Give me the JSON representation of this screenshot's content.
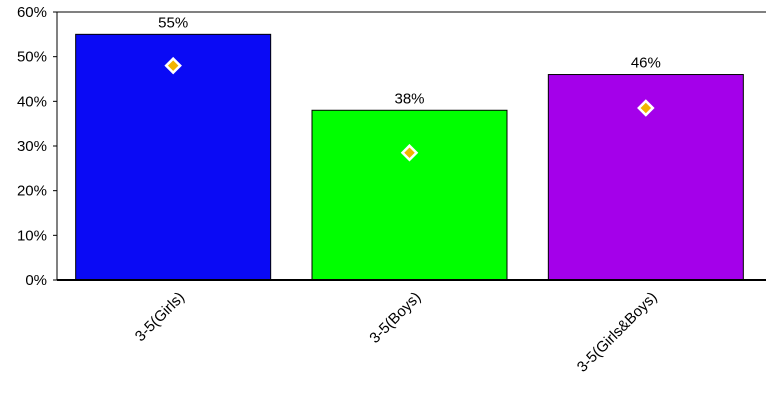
{
  "chart_data": {
    "type": "bar",
    "categories": [
      "3-5(Girls)",
      "3-5(Boys)",
      "3-5(Girls&Boys)"
    ],
    "values": [
      55,
      38,
      46
    ],
    "value_labels": [
      "55%",
      "38%",
      "46%"
    ],
    "markers": [
      48,
      28.5,
      38.5
    ],
    "bar_colors": [
      "#0a0af5",
      "#00ff00",
      "#a400ea"
    ],
    "marker_color": "#f2b400",
    "marker_outline": "#ffffff",
    "ylim": [
      0,
      60
    ],
    "y_ticks": [
      0,
      10,
      20,
      30,
      40,
      50,
      60
    ],
    "y_tick_labels": [
      "0%",
      "10%",
      "20%",
      "30%",
      "40%",
      "50%",
      "60%"
    ],
    "title": "",
    "xlabel": "",
    "ylabel": "",
    "grid": false,
    "legend": "none"
  }
}
